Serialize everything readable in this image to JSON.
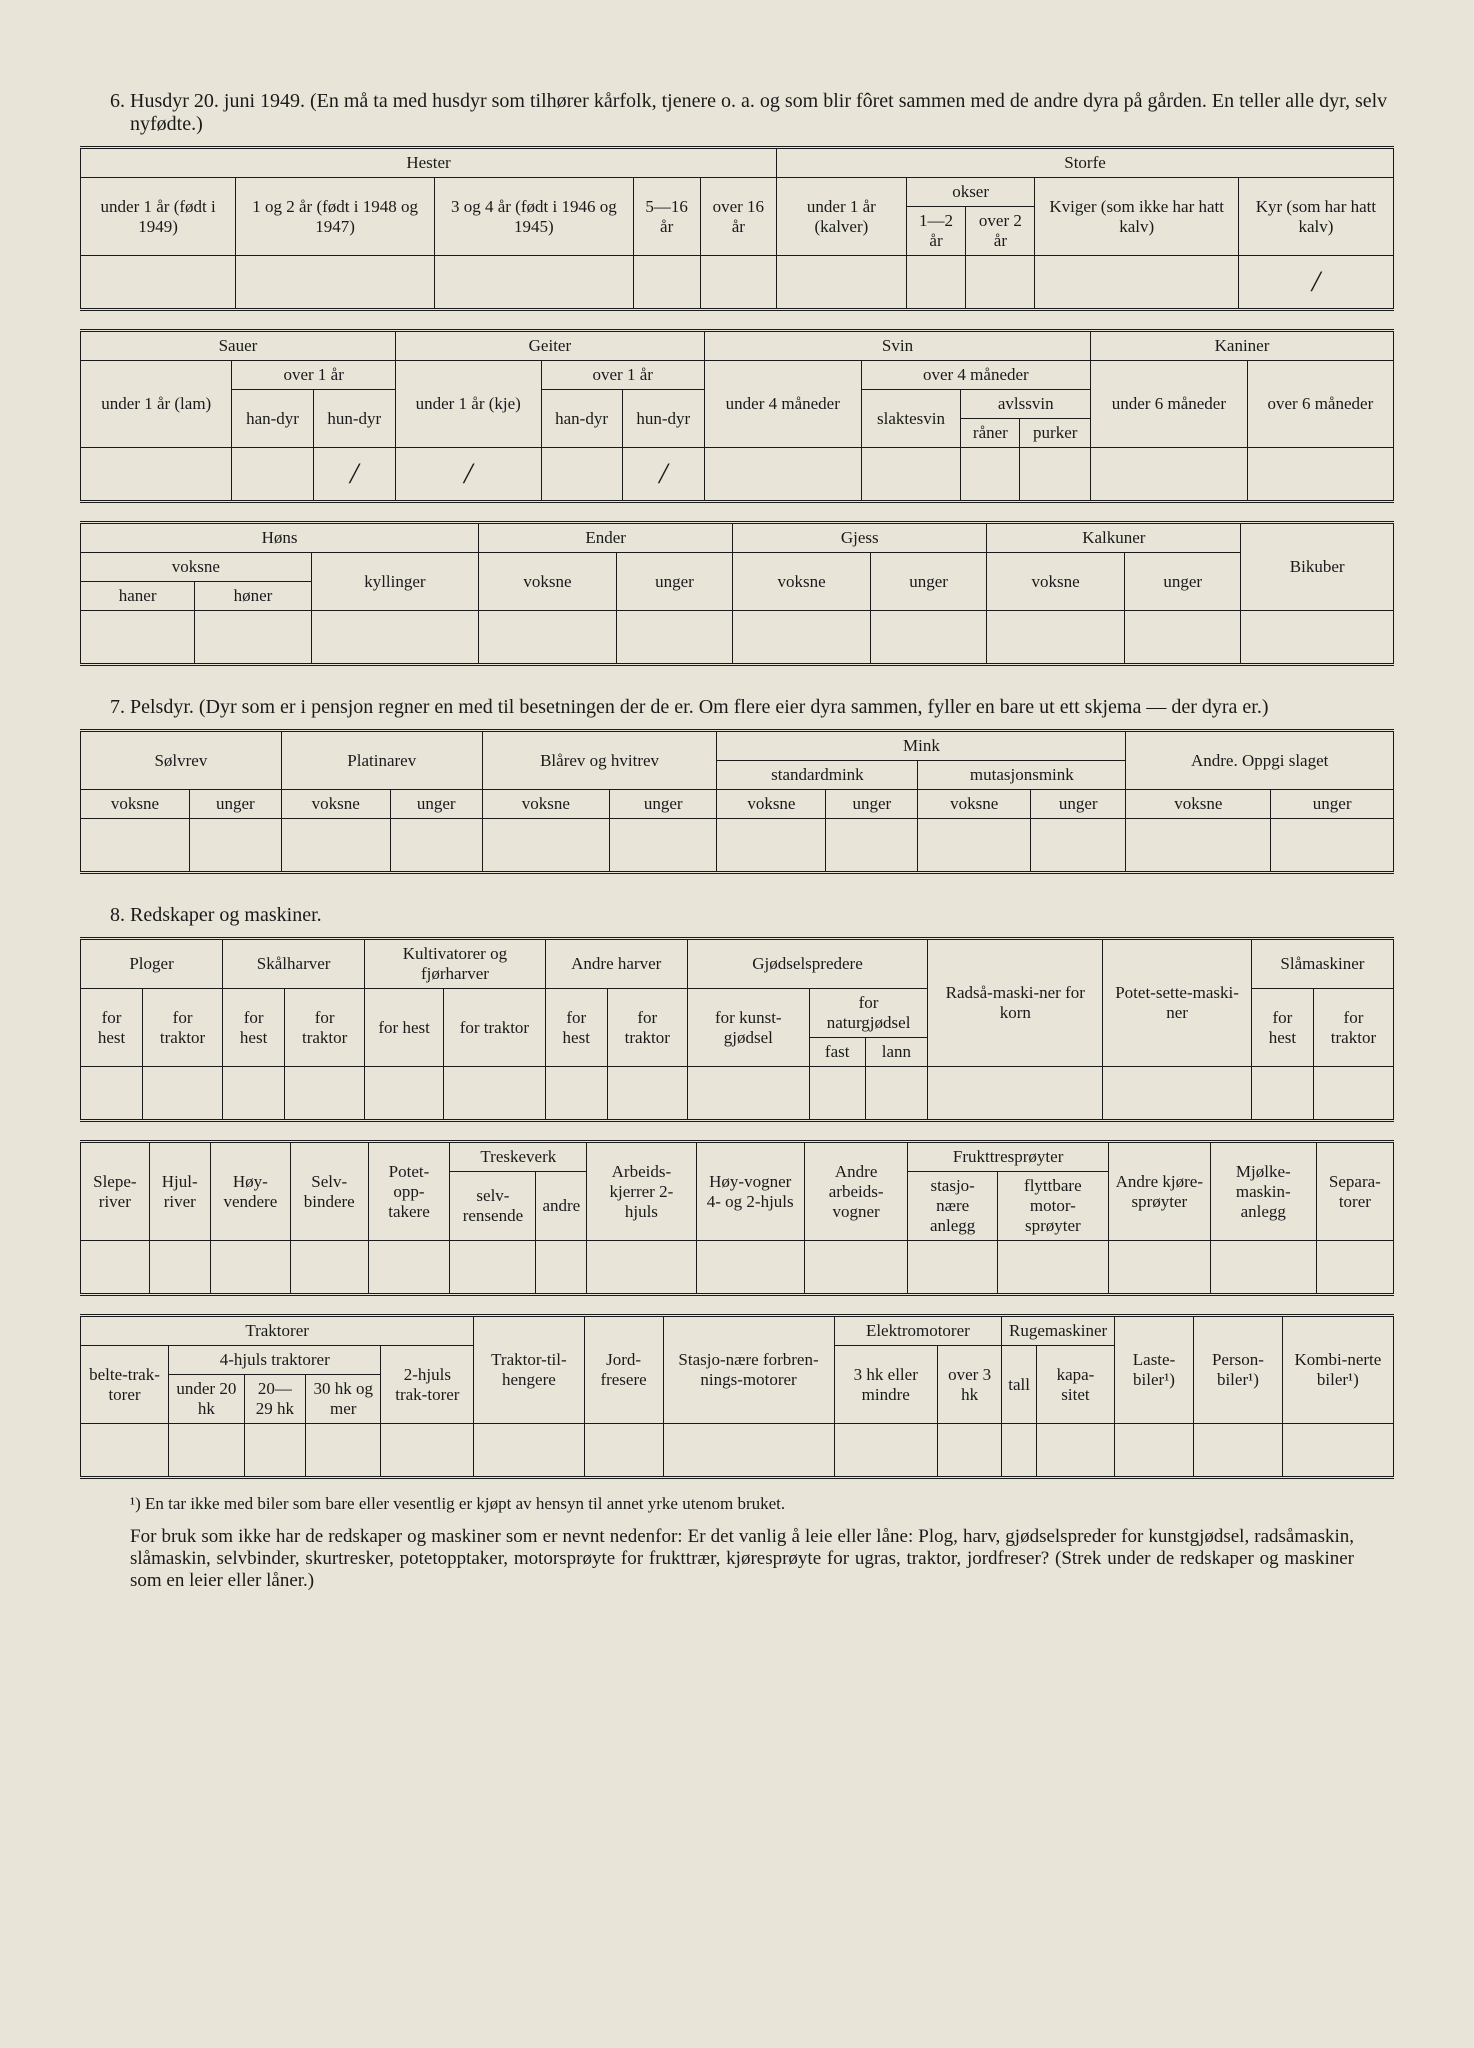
{
  "section6": {
    "title": "6. Husdyr 20. juni 1949. (En må ta med husdyr som tilhører kårfolk, tjenere o. a. og som blir fôret sammen med de andre dyra på gården. En teller alle dyr, selv nyfødte.)",
    "hester": "Hester",
    "storfe": "Storfe",
    "h1": "under 1 år (født i 1949)",
    "h2": "1 og 2 år (født i 1948 og 1947)",
    "h3": "3 og 4 år (født i 1946 og 1945)",
    "h4": "5—16 år",
    "h5": "over 16 år",
    "s1": "under 1 år (kalver)",
    "okser": "okser",
    "o1": "1—2 år",
    "o2": "over 2 år",
    "kviger": "Kviger (som ikke har hatt kalv)",
    "kyr": "Kyr (som har hatt kalv)",
    "sauer": "Sauer",
    "geiter": "Geiter",
    "svin": "Svin",
    "kaniner": "Kaniner",
    "sa1": "under 1 år (lam)",
    "over1": "over 1 år",
    "handyr": "han-dyr",
    "hundyr": "hun-dyr",
    "ge1": "under 1 år (kje)",
    "sv1": "under 4 måneder",
    "over4m": "over 4 måneder",
    "slaktesvin": "slaktesvin",
    "avlssvin": "avlssvin",
    "raner": "råner",
    "purker": "purker",
    "ka1": "under 6 måneder",
    "ka2": "over 6 måneder",
    "hons": "Høns",
    "ender": "Ender",
    "gjess": "Gjess",
    "kalkuner": "Kalkuner",
    "bikuber": "Bikuber",
    "voksne": "voksne",
    "unger": "unger",
    "haner": "haner",
    "honer": "høner",
    "kyllinger": "kyllinger",
    "slash": "/"
  },
  "section7": {
    "title": "7. Pelsdyr. (Dyr som er i pensjon regner en med til besetningen der de er. Om flere eier dyra sammen, fyller en bare ut ett skjema — der dyra er.)",
    "solvrev": "Sølvrev",
    "platinarev": "Platinarev",
    "blarev": "Blårev og hvitrev",
    "mink": "Mink",
    "andre": "Andre. Oppgi slaget",
    "standardmink": "standardmink",
    "mutasjonsmink": "mutasjonsmink",
    "voksne": "voksne",
    "unger": "unger"
  },
  "section8": {
    "title": "8. Redskaper og maskiner.",
    "ploger": "Ploger",
    "skalharver": "Skålharver",
    "kultivatorer": "Kultivatorer og fjørharver",
    "andreharver": "Andre harver",
    "gjodselspredere": "Gjødselspredere",
    "radsa": "Radså-maski-ner for korn",
    "potet": "Potet-sette-maski-ner",
    "slamaskiner": "Slåmaskiner",
    "forhest": "for hest",
    "fortraktor": "for traktor",
    "forkunst": "for kunst-gjødsel",
    "fornat": "for naturgjødsel",
    "fast": "fast",
    "lann": "lann",
    "sleperiver": "Slepe-river",
    "hjulriver": "Hjul-river",
    "hoyvendere": "Høy-vendere",
    "selvbindere": "Selv-bindere",
    "potetopp": "Potet-opp-takere",
    "treskeverk": "Treskeverk",
    "selvrensende": "selv-rensende",
    "andre": "andre",
    "arbeids2": "Arbeids-kjerrer 2-hjuls",
    "hoyvogner": "Høy-vogner 4- og 2-hjuls",
    "andrevogner": "Andre arbeids-vogner",
    "frukttre": "Frukttresprøyter",
    "stasjo": "stasjo-nære anlegg",
    "flyttbare": "flyttbare motor-sprøyter",
    "andrekjore": "Andre kjøre-sprøyter",
    "mjolke": "Mjølke-maskin-anlegg",
    "separa": "Separa-torer",
    "traktorer": "Traktorer",
    "belte": "belte-trak-torer",
    "4hjuls": "4-hjuls traktorer",
    "under20": "under 20 hk",
    "2029": "20—29 hk",
    "30og": "30 hk og mer",
    "2hjuls": "2-hjuls trak-torer",
    "traktortil": "Traktor-til-hengere",
    "jordfresere": "Jord-fresere",
    "stasjoforbren": "Stasjo-nære forbren-nings-motorer",
    "elektro": "Elektromotorer",
    "3hk": "3 hk eller mindre",
    "over3hk": "over 3 hk",
    "ruge": "Rugemaskiner",
    "tall": "tall",
    "kapasitet": "kapa-sitet",
    "laste": "Laste-biler¹)",
    "person": "Person-biler¹)",
    "kombi": "Kombi-nerte biler¹)"
  },
  "footnote": "¹) En tar ikke med biler som bare eller vesentlig er kjøpt av hensyn til annet yrke utenom bruket.",
  "para": "For bruk som ikke har de redskaper og maskiner som er nevnt nedenfor: Er det vanlig å leie eller låne: Plog, harv, gjødselspreder for kunstgjødsel, radsåmaskin, slåmaskin, selvbinder, skurtresker, potetopptaker, motorsprøyte for frukttrær, kjøresprøyte for ugras, traktor, jordfreser? (Strek under de redskaper og maskiner som en leier eller låner.)"
}
